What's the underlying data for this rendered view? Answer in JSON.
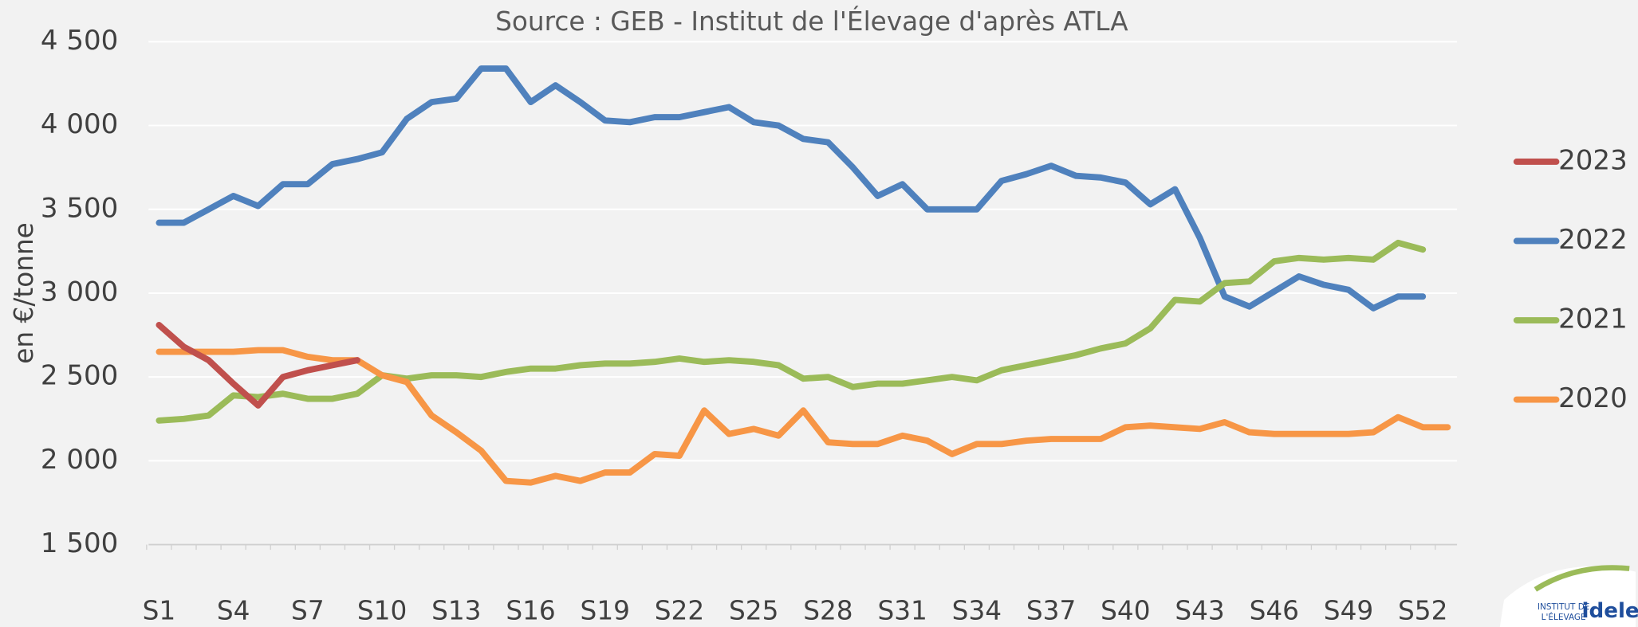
{
  "chart_data": {
    "type": "line",
    "title": "Source : GEB - Institut de l'Élevage d'après ATLA",
    "y_label": "en €/tonne",
    "categories": [
      "S1",
      null,
      null,
      "S4",
      null,
      null,
      "S7",
      null,
      null,
      "S10",
      null,
      null,
      "S13",
      null,
      null,
      "S16",
      null,
      null,
      "S19",
      null,
      null,
      "S22",
      null,
      null,
      "S25",
      null,
      null,
      "S28",
      null,
      null,
      "S31",
      null,
      null,
      "S34",
      null,
      null,
      "S37",
      null,
      null,
      "S40",
      null,
      null,
      "S43",
      null,
      null,
      "S46",
      null,
      null,
      "S49",
      null,
      null,
      "S52",
      null
    ],
    "series": [
      {
        "name": "2023",
        "color": "#c0504d",
        "values": [
          2810,
          2680,
          2600,
          2460,
          2330,
          2500,
          2540,
          2570,
          2600,
          null,
          null,
          null,
          null,
          null,
          null,
          null,
          null,
          null,
          null,
          null,
          null,
          null,
          null,
          null,
          null,
          null,
          null,
          null,
          null,
          null,
          null,
          null,
          null,
          null,
          null,
          null,
          null,
          null,
          null,
          null,
          null,
          null,
          null,
          null,
          null,
          null,
          null,
          null,
          null,
          null,
          null,
          null,
          null
        ]
      },
      {
        "name": "2022",
        "color": "#4f81bd",
        "values": [
          3420,
          3420,
          3500,
          3580,
          3520,
          3650,
          3650,
          3770,
          3800,
          3840,
          4040,
          4140,
          4160,
          4340,
          4340,
          4140,
          4240,
          4140,
          4030,
          4020,
          4050,
          4050,
          4080,
          4110,
          4020,
          4000,
          3920,
          3900,
          3750,
          3580,
          3650,
          3500,
          3500,
          3500,
          3670,
          3710,
          3760,
          3700,
          3690,
          3660,
          3530,
          3620,
          3330,
          2980,
          2920,
          3010,
          3100,
          3050,
          3020,
          2910,
          2980,
          2980,
          null
        ]
      },
      {
        "name": "2021",
        "color": "#9bbb59",
        "values": [
          2240,
          2250,
          2270,
          2390,
          2380,
          2400,
          2370,
          2370,
          2400,
          2510,
          2490,
          2510,
          2510,
          2500,
          2530,
          2550,
          2550,
          2570,
          2580,
          2580,
          2590,
          2610,
          2590,
          2600,
          2590,
          2570,
          2490,
          2500,
          2440,
          2460,
          2460,
          2480,
          2500,
          2480,
          2540,
          2570,
          2600,
          2630,
          2670,
          2700,
          2790,
          2960,
          2950,
          3060,
          3070,
          3190,
          3210,
          3200,
          3210,
          3200,
          3300,
          3260,
          null
        ]
      },
      {
        "name": "2020",
        "color": "#f79646",
        "values": [
          2650,
          2650,
          2650,
          2650,
          2660,
          2660,
          2620,
          2600,
          2600,
          2510,
          2470,
          2270,
          2170,
          2060,
          1880,
          1870,
          1910,
          1880,
          1930,
          1930,
          2040,
          2030,
          2300,
          2160,
          2190,
          2150,
          2300,
          2110,
          2100,
          2100,
          2150,
          2120,
          2040,
          2100,
          2100,
          2120,
          2130,
          2130,
          2130,
          2200,
          2210,
          2200,
          2190,
          2230,
          2170,
          2160,
          2160,
          2160,
          2160,
          2170,
          2260,
          2200,
          2200
        ]
      }
    ],
    "ylim": [
      1500,
      4500
    ],
    "yticks": [
      {
        "value": 1500,
        "label": "1 500"
      },
      {
        "value": 2000,
        "label": "2 000"
      },
      {
        "value": 2500,
        "label": "2 500"
      },
      {
        "value": 3000,
        "label": "3 000"
      },
      {
        "value": 3500,
        "label": "3 500"
      },
      {
        "value": 4000,
        "label": "4 000"
      },
      {
        "value": 4500,
        "label": "4 500"
      }
    ],
    "grid": true,
    "legend": "right"
  },
  "logo": {
    "line1": "INSTITUT DE",
    "line2": "L'ÉLEVAGE",
    "brand": "idele"
  }
}
